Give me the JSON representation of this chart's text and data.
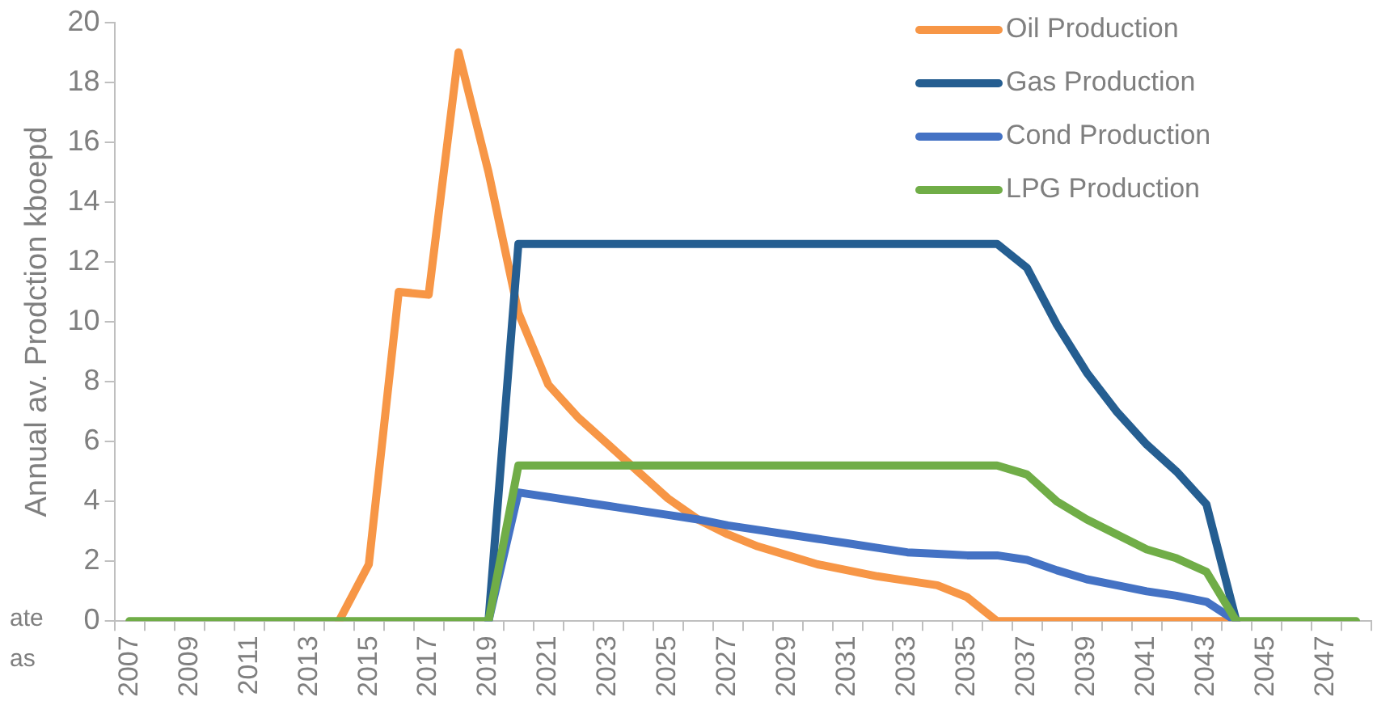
{
  "chart_data": {
    "type": "line",
    "ylabel": "Annual av. Prodction kboepd",
    "categories": [
      "2007",
      null,
      "2009",
      null,
      "2011",
      null,
      "2013",
      null,
      "2015",
      null,
      "2017",
      null,
      "2019",
      null,
      "2021",
      null,
      "2023",
      null,
      "2025",
      null,
      "2027",
      null,
      "2029",
      null,
      "2031",
      null,
      "2033",
      null,
      "2035",
      null,
      "2037",
      null,
      "2039",
      null,
      "2041",
      null,
      "2043",
      null,
      "2045",
      null,
      "2047",
      null
    ],
    "series": [
      {
        "name": "Oil Production",
        "color": "#f79646",
        "values": [
          null,
          null,
          null,
          null,
          null,
          null,
          null,
          0,
          1.9,
          11.0,
          10.9,
          19.0,
          15.0,
          10.3,
          7.9,
          6.8,
          5.9,
          5.0,
          4.1,
          3.4,
          2.9,
          2.5,
          2.2,
          1.9,
          1.7,
          1.5,
          1.35,
          1.2,
          0.8,
          0,
          0,
          0,
          0,
          0,
          0,
          0,
          0,
          0,
          null,
          null,
          null,
          null
        ]
      },
      {
        "name": "Gas Production",
        "color": "#255e91",
        "values": [
          null,
          null,
          null,
          null,
          null,
          null,
          null,
          null,
          null,
          null,
          null,
          null,
          0,
          12.6,
          12.6,
          12.6,
          12.6,
          12.6,
          12.6,
          12.6,
          12.6,
          12.6,
          12.6,
          12.6,
          12.6,
          12.6,
          12.6,
          12.6,
          12.6,
          12.6,
          11.8,
          9.9,
          8.3,
          7.0,
          5.9,
          5.0,
          3.9,
          0,
          null,
          null,
          null,
          null
        ]
      },
      {
        "name": "Cond Production",
        "color": "#4472c4",
        "values": [
          null,
          null,
          null,
          null,
          null,
          null,
          null,
          null,
          null,
          null,
          null,
          null,
          0,
          4.3,
          4.15,
          4.0,
          3.85,
          3.7,
          3.55,
          3.4,
          3.2,
          3.05,
          2.9,
          2.75,
          2.6,
          2.45,
          2.3,
          2.25,
          2.2,
          2.2,
          2.05,
          1.7,
          1.4,
          1.2,
          1.0,
          0.85,
          0.65,
          0,
          null,
          null,
          null,
          null
        ]
      },
      {
        "name": "LPG Production",
        "color": "#70ad47",
        "values": [
          0,
          0,
          0,
          0,
          0,
          0,
          0,
          0,
          0,
          0,
          0,
          0,
          0,
          5.2,
          5.2,
          5.2,
          5.2,
          5.2,
          5.2,
          5.2,
          5.2,
          5.2,
          5.2,
          5.2,
          5.2,
          5.2,
          5.2,
          5.2,
          5.2,
          5.2,
          4.9,
          4.0,
          3.4,
          2.9,
          2.4,
          2.1,
          1.65,
          0,
          0,
          0,
          0,
          0
        ]
      }
    ],
    "ylim": [
      0,
      20
    ],
    "yticks": [
      0,
      2,
      4,
      6,
      8,
      10,
      12,
      14,
      16,
      18,
      20
    ],
    "grid": false,
    "legend": "top right",
    "marker": "none",
    "line_style": "solid",
    "annotations": [
      "ate",
      "as"
    ]
  }
}
